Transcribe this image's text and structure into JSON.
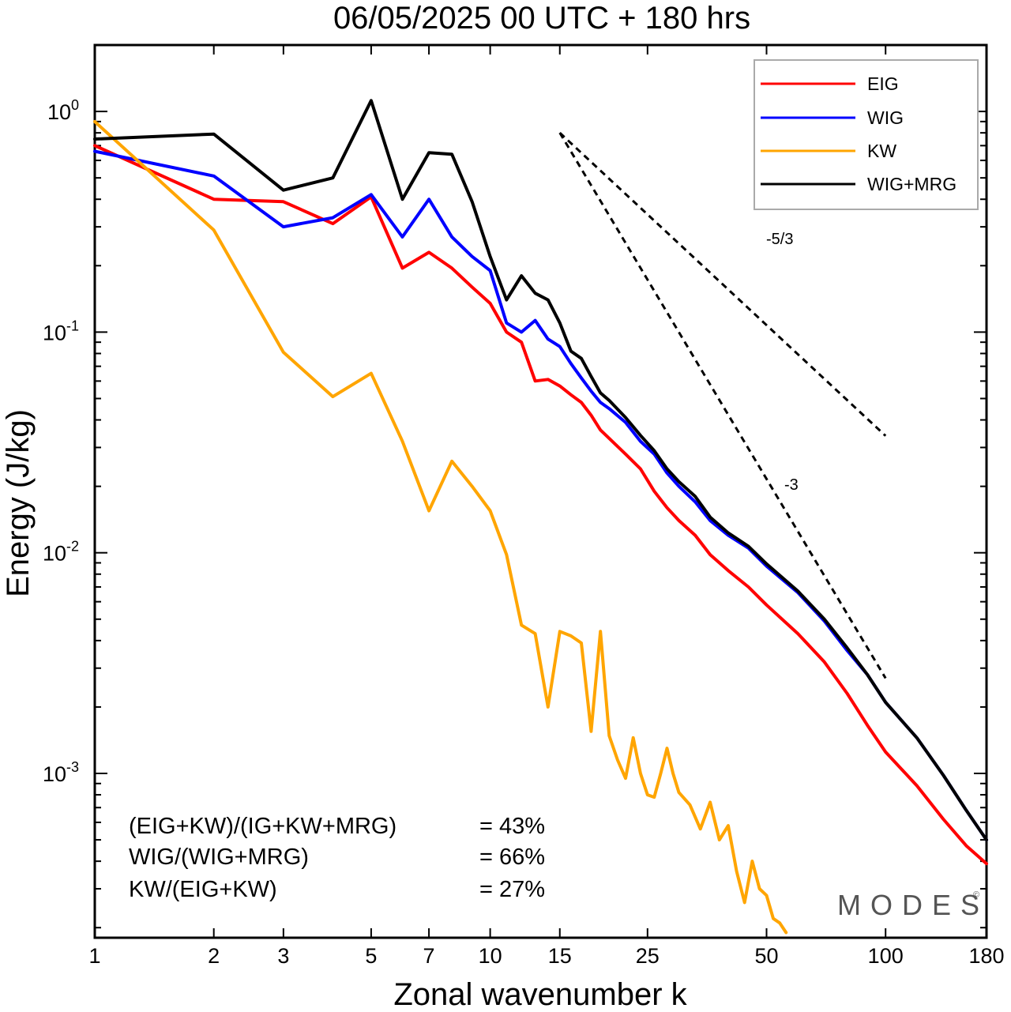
{
  "chart_data": {
    "type": "line",
    "title": "06/05/2025  00 UTC  + 180 hrs",
    "xlabel": "Zonal wavenumber k",
    "ylabel": "Energy (J/kg)",
    "xscale": "log",
    "yscale": "log",
    "xlim": [
      1,
      180
    ],
    "ylim": [
      0.00018,
      2.0
    ],
    "grid": false,
    "legend_position": "top-right",
    "xticks": [
      1,
      2,
      3,
      5,
      7,
      10,
      15,
      25,
      50,
      100,
      180
    ],
    "xtick_labels": [
      "1",
      "2",
      "3",
      "5",
      "7",
      "10",
      "15",
      "25",
      "50",
      "100",
      "180"
    ],
    "yticks": [
      1,
      0.1,
      0.01,
      0.001
    ],
    "ytick_labels": [
      {
        "base": "10",
        "exp": "0"
      },
      {
        "base": "10",
        "exp": "-1"
      },
      {
        "base": "10",
        "exp": "-2"
      },
      {
        "base": "10",
        "exp": "-3"
      }
    ],
    "series": [
      {
        "name": "EIG",
        "color": "#ff0000",
        "points": [
          [
            1,
            0.7
          ],
          [
            2,
            0.4
          ],
          [
            3,
            0.39
          ],
          [
            4,
            0.31
          ],
          [
            5,
            0.41
          ],
          [
            6,
            0.195
          ],
          [
            7,
            0.23
          ],
          [
            8,
            0.195
          ],
          [
            9,
            0.16
          ],
          [
            10,
            0.135
          ],
          [
            11,
            0.1
          ],
          [
            12,
            0.09
          ],
          [
            13,
            0.06
          ],
          [
            14,
            0.061
          ],
          [
            15,
            0.057
          ],
          [
            16,
            0.052
          ],
          [
            17,
            0.048
          ],
          [
            18,
            0.042
          ],
          [
            19,
            0.036
          ],
          [
            20,
            0.033
          ],
          [
            22,
            0.028
          ],
          [
            24,
            0.024
          ],
          [
            26,
            0.019
          ],
          [
            28,
            0.016
          ],
          [
            30,
            0.014
          ],
          [
            33,
            0.012
          ],
          [
            36,
            0.0098
          ],
          [
            40,
            0.0083
          ],
          [
            45,
            0.007
          ],
          [
            50,
            0.0058
          ],
          [
            60,
            0.0043
          ],
          [
            70,
            0.0032
          ],
          [
            80,
            0.0023
          ],
          [
            90,
            0.00165
          ],
          [
            100,
            0.00125
          ],
          [
            120,
            0.00088
          ],
          [
            140,
            0.00062
          ],
          [
            160,
            0.00047
          ],
          [
            180,
            0.00039
          ]
        ]
      },
      {
        "name": "WIG",
        "color": "#0000ff",
        "points": [
          [
            1,
            0.66
          ],
          [
            2,
            0.51
          ],
          [
            3,
            0.3
          ],
          [
            4,
            0.33
          ],
          [
            5,
            0.42
          ],
          [
            6,
            0.27
          ],
          [
            7,
            0.4
          ],
          [
            8,
            0.27
          ],
          [
            9,
            0.22
          ],
          [
            10,
            0.19
          ],
          [
            11,
            0.11
          ],
          [
            12,
            0.1
          ],
          [
            13,
            0.113
          ],
          [
            14,
            0.093
          ],
          [
            15,
            0.086
          ],
          [
            16,
            0.072
          ],
          [
            17,
            0.062
          ],
          [
            18,
            0.054
          ],
          [
            19,
            0.048
          ],
          [
            20,
            0.045
          ],
          [
            22,
            0.039
          ],
          [
            24,
            0.032
          ],
          [
            26,
            0.028
          ],
          [
            28,
            0.023
          ],
          [
            30,
            0.02
          ],
          [
            33,
            0.017
          ],
          [
            36,
            0.014
          ],
          [
            40,
            0.012
          ],
          [
            45,
            0.0105
          ],
          [
            50,
            0.0087
          ],
          [
            60,
            0.0066
          ],
          [
            70,
            0.0049
          ],
          [
            80,
            0.0036
          ],
          [
            90,
            0.0028
          ],
          [
            100,
            0.0021
          ],
          [
            120,
            0.00145
          ],
          [
            140,
            0.00098
          ],
          [
            160,
            0.00068
          ],
          [
            180,
            0.0005
          ]
        ]
      },
      {
        "name": "KW",
        "color": "#ffa500",
        "points": [
          [
            1,
            0.9
          ],
          [
            2,
            0.29
          ],
          [
            3,
            0.081
          ],
          [
            4,
            0.051
          ],
          [
            5,
            0.065
          ],
          [
            6,
            0.032
          ],
          [
            7,
            0.0155
          ],
          [
            8,
            0.026
          ],
          [
            9,
            0.02
          ],
          [
            10,
            0.0155
          ],
          [
            11,
            0.0098
          ],
          [
            12,
            0.0047
          ],
          [
            13,
            0.0043
          ],
          [
            14,
            0.002
          ],
          [
            15,
            0.0044
          ],
          [
            16,
            0.0042
          ],
          [
            17,
            0.0039
          ],
          [
            18,
            0.00155
          ],
          [
            19,
            0.0044
          ],
          [
            20,
            0.00148
          ],
          [
            21,
            0.00115
          ],
          [
            22,
            0.00095
          ],
          [
            23,
            0.00145
          ],
          [
            24,
            0.001
          ],
          [
            25,
            0.0008
          ],
          [
            26,
            0.00078
          ],
          [
            27,
            0.001
          ],
          [
            28,
            0.0013
          ],
          [
            29,
            0.001
          ],
          [
            30,
            0.00082
          ],
          [
            32,
            0.00072
          ],
          [
            34,
            0.00056
          ],
          [
            36,
            0.00074
          ],
          [
            38,
            0.0005
          ],
          [
            40,
            0.00058
          ],
          [
            42,
            0.00036
          ],
          [
            44,
            0.00026
          ],
          [
            46,
            0.0004
          ],
          [
            48,
            0.0003
          ],
          [
            50,
            0.00028
          ],
          [
            52,
            0.00022
          ],
          [
            54,
            0.00021
          ],
          [
            56,
            0.00019
          ]
        ]
      },
      {
        "name": "WIG+MRG",
        "color": "#000000",
        "points": [
          [
            1,
            0.75
          ],
          [
            2,
            0.79
          ],
          [
            3,
            0.44
          ],
          [
            4,
            0.5
          ],
          [
            5,
            1.12
          ],
          [
            6,
            0.4
          ],
          [
            7,
            0.65
          ],
          [
            8,
            0.64
          ],
          [
            9,
            0.39
          ],
          [
            10,
            0.22
          ],
          [
            11,
            0.14
          ],
          [
            12,
            0.18
          ],
          [
            13,
            0.15
          ],
          [
            14,
            0.14
          ],
          [
            15,
            0.11
          ],
          [
            16,
            0.082
          ],
          [
            17,
            0.076
          ],
          [
            18,
            0.063
          ],
          [
            19,
            0.053
          ],
          [
            20,
            0.049
          ],
          [
            22,
            0.041
          ],
          [
            24,
            0.034
          ],
          [
            26,
            0.029
          ],
          [
            28,
            0.024
          ],
          [
            30,
            0.021
          ],
          [
            33,
            0.018
          ],
          [
            36,
            0.0145
          ],
          [
            40,
            0.0123
          ],
          [
            45,
            0.0107
          ],
          [
            50,
            0.0089
          ],
          [
            60,
            0.0067
          ],
          [
            70,
            0.005
          ],
          [
            80,
            0.0037
          ],
          [
            90,
            0.0028
          ],
          [
            100,
            0.0021
          ],
          [
            120,
            0.00145
          ],
          [
            140,
            0.00098
          ],
          [
            160,
            0.00068
          ],
          [
            180,
            0.0005
          ]
        ]
      }
    ],
    "reference_slopes": [
      {
        "label": "-5/3",
        "slope": -1.6667,
        "x_start": 15,
        "y_start": 0.8,
        "x_end": 100,
        "style": "dashed"
      },
      {
        "label": "-3",
        "slope": -3,
        "x_start": 15,
        "y_start": 0.8,
        "x_end": 100,
        "style": "dashed"
      }
    ],
    "annotations": [
      {
        "expr": "(EIG+KW)/(IG+KW+MRG)",
        "value": "= 43%"
      },
      {
        "expr": "WIG/(WIG+MRG)",
        "value": "= 66%"
      },
      {
        "expr": "KW/(EIG+KW)",
        "value": "= 27%"
      }
    ]
  },
  "brand": {
    "name": "MODES",
    "mark": "©"
  }
}
